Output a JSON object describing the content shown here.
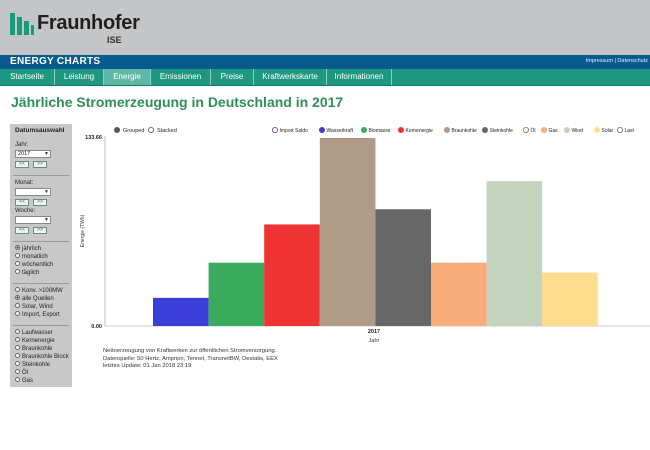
{
  "header": {
    "logo_name": "Fraunhofer",
    "logo_sub": "ISE",
    "app_title": "ENERGY CHARTS",
    "links": [
      "Impressum",
      "Datenschutz"
    ]
  },
  "nav": {
    "items": [
      "Startseite",
      "Leistung",
      "Energie",
      "Emissionen",
      "Preise",
      "Kraftwerkskarte",
      "Informationen"
    ],
    "active": "Energie"
  },
  "page_title": "Jährliche Stromerzeugung in Deutschland in 2017",
  "sidebar": {
    "heading": "Datumsauswahl",
    "year_label": "Jahr:",
    "year_value": "2017",
    "month_label": "Monat:",
    "month_value": "",
    "week_label": "Woche:",
    "week_value": "",
    "prev_label": "<<",
    "next_label": ">>",
    "interval_options": [
      {
        "label": "jährlich",
        "selected": true
      },
      {
        "label": "monatlich",
        "selected": false
      },
      {
        "label": "wöchentlich",
        "selected": false
      },
      {
        "label": "täglich",
        "selected": false
      }
    ],
    "source_options": [
      {
        "label": "Konv. >100MW",
        "selected": false
      },
      {
        "label": "alle Quellen",
        "selected": true
      },
      {
        "label": "Solar, Wind",
        "selected": false
      },
      {
        "label": "Import, Export",
        "selected": false
      }
    ],
    "energy_sources": [
      "Laufwasser",
      "Kernenergie",
      "Braunkohle",
      "Braunkohle Block",
      "Steinkohle",
      "Öl",
      "Gas"
    ]
  },
  "chart_controls": {
    "grouped_label": "Grouped",
    "stacked_label": "Stacked",
    "mode": "grouped"
  },
  "chart_data": {
    "type": "bar",
    "title": "",
    "xlabel": "Jahr",
    "ylabel": "Energie (TWh)",
    "categories": [
      "2017"
    ],
    "ylim": [
      0,
      133.66
    ],
    "yticks": [
      "0.00",
      "133.66"
    ],
    "legend_position": "top-right",
    "series": [
      {
        "name": "Import Saldo",
        "values": [
          0
        ],
        "color": "#7a2f8f",
        "filled": false
      },
      {
        "name": "Wasserkraft",
        "values": [
          20.0
        ],
        "color": "#3b3fd8",
        "filled": true
      },
      {
        "name": "Biomasse",
        "values": [
          45.0
        ],
        "color": "#3aaa5c",
        "filled": true
      },
      {
        "name": "Kernenergie",
        "values": [
          72.2
        ],
        "color": "#ef3434",
        "filled": true
      },
      {
        "name": "Braunkohle",
        "values": [
          133.66
        ],
        "color": "#b09b89",
        "filled": true
      },
      {
        "name": "Steinkohle",
        "values": [
          83.0
        ],
        "color": "#676767",
        "filled": true
      },
      {
        "name": "Öl",
        "values": [
          0
        ],
        "color": "#8e6a3e",
        "filled": false
      },
      {
        "name": "Gas",
        "values": [
          45.0
        ],
        "color": "#f8ac7c",
        "filled": true
      },
      {
        "name": "Wind",
        "values": [
          103.0
        ],
        "color": "#c4d3bd",
        "filled": true
      },
      {
        "name": "Solar",
        "values": [
          38.0
        ],
        "color": "#fddd8c",
        "filled": true
      },
      {
        "name": "Last",
        "values": [
          0
        ],
        "color": "#666666",
        "filled": false
      }
    ]
  },
  "notes": [
    "Nettoerzeugung von Kraftwerken zur öffentlichen Stromversorgung.",
    "Datenquelle: 50 Hertz, Amprion, Tennet, TransnetBW, Destatis, EEX",
    "letztes Update: 01 Jan 2018 23:19"
  ]
}
